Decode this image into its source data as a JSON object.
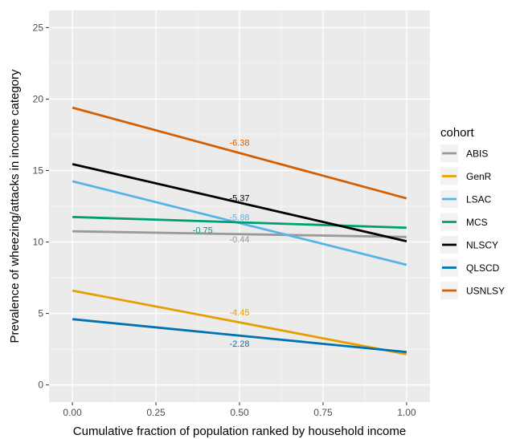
{
  "chart_data": {
    "type": "line",
    "xlabel": "Cumulative fraction of population ranked by household income",
    "ylabel": "Prevalence of wheezing/attacks in income category",
    "xlim": [
      -0.07,
      1.07
    ],
    "ylim": [
      -1.2,
      26.2
    ],
    "x_ticks": [
      0.0,
      0.25,
      0.5,
      0.75,
      1.0
    ],
    "x_tick_labels": [
      "0.00",
      "0.25",
      "0.50",
      "0.75",
      "1.00"
    ],
    "y_ticks": [
      0,
      5,
      10,
      15,
      20,
      25
    ],
    "y_tick_labels": [
      "0",
      "5",
      "10",
      "15",
      "20",
      "25"
    ],
    "grid": true,
    "panel_background": "#ebebeb",
    "legend": {
      "title": "cohort",
      "position": "right"
    },
    "series": [
      {
        "name": "ABIS",
        "color": "#999999",
        "x": [
          0,
          1
        ],
        "y": [
          10.75,
          10.35
        ],
        "annotation": {
          "text": "-0.44",
          "x": 0.5,
          "y": 10.2
        }
      },
      {
        "name": "GenR",
        "color": "#e69f00",
        "x": [
          0,
          1
        ],
        "y": [
          6.6,
          2.15
        ],
        "annotation": {
          "text": "-4.45",
          "x": 0.5,
          "y": 5.1
        }
      },
      {
        "name": "LSAC",
        "color": "#56b4e9",
        "x": [
          0,
          1
        ],
        "y": [
          14.25,
          8.4
        ],
        "annotation": {
          "text": "-5.88",
          "x": 0.5,
          "y": 11.75
        }
      },
      {
        "name": "MCS",
        "color": "#009e73",
        "x": [
          0,
          1
        ],
        "y": [
          11.75,
          11.0
        ],
        "annotation": {
          "text": "-0.75",
          "x": 0.39,
          "y": 10.85
        }
      },
      {
        "name": "NLSCY",
        "color": "#000000",
        "x": [
          0,
          1
        ],
        "y": [
          15.45,
          10.05
        ],
        "annotation": {
          "text": "-5.37",
          "x": 0.5,
          "y": 13.1
        }
      },
      {
        "name": "QLSCD",
        "color": "#0072b2",
        "x": [
          0,
          1
        ],
        "y": [
          4.6,
          2.3
        ],
        "annotation": {
          "text": "-2.28",
          "x": 0.5,
          "y": 2.9
        }
      },
      {
        "name": "USNLSY",
        "color": "#d55e00",
        "x": [
          0,
          1
        ],
        "y": [
          19.4,
          13.05
        ],
        "annotation": {
          "text": "-6.38",
          "x": 0.5,
          "y": 16.95
        }
      }
    ]
  }
}
